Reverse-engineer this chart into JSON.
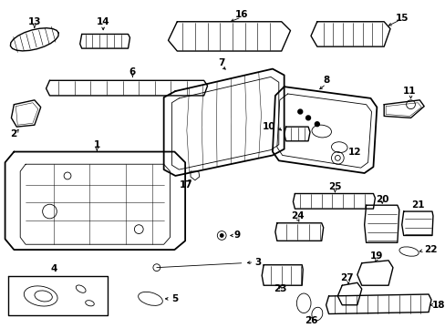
{
  "background": "#ffffff",
  "line_color": "#000000",
  "figsize": [
    4.89,
    3.6
  ],
  "dpi": 100
}
